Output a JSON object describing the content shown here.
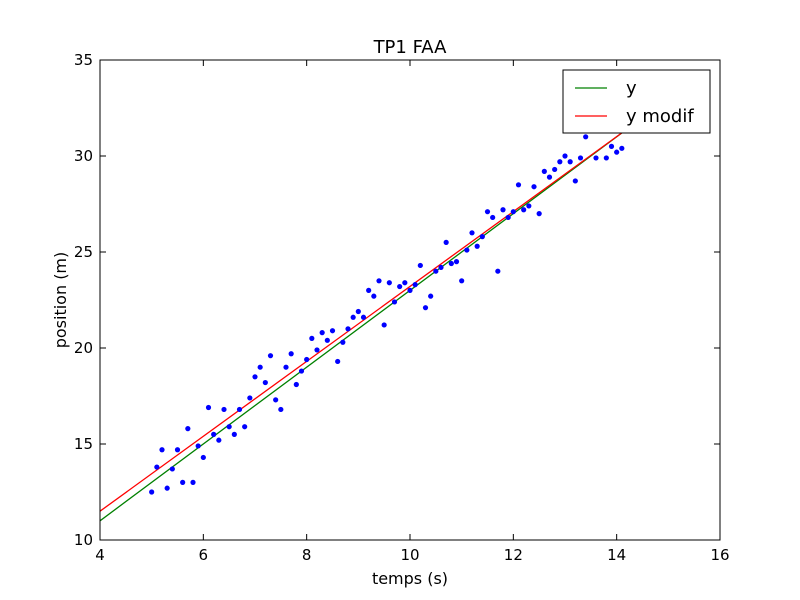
{
  "chart_data": {
    "type": "scatter",
    "title": "TP1 FAA",
    "xlabel": "temps (s)",
    "ylabel": "position (m)",
    "xlim": [
      4,
      16
    ],
    "ylim": [
      10,
      35
    ],
    "xticks": [
      "4",
      "6",
      "8",
      "10",
      "12",
      "14",
      "16"
    ],
    "yticks": [
      "10",
      "15",
      "20",
      "25",
      "30",
      "35"
    ],
    "grid": false,
    "legend_position": "top-right",
    "series": [
      {
        "name": "",
        "kind": "scatter",
        "color": "#0000ff",
        "points": [
          [
            5.0,
            12.5
          ],
          [
            5.1,
            13.8
          ],
          [
            5.2,
            14.7
          ],
          [
            5.3,
            12.7
          ],
          [
            5.4,
            13.7
          ],
          [
            5.5,
            14.7
          ],
          [
            5.6,
            13.0
          ],
          [
            5.7,
            15.8
          ],
          [
            5.8,
            13.0
          ],
          [
            5.9,
            14.9
          ],
          [
            6.0,
            14.3
          ],
          [
            6.1,
            16.9
          ],
          [
            6.2,
            15.5
          ],
          [
            6.3,
            15.2
          ],
          [
            6.4,
            16.8
          ],
          [
            6.5,
            15.9
          ],
          [
            6.6,
            15.5
          ],
          [
            6.7,
            16.8
          ],
          [
            6.8,
            15.9
          ],
          [
            6.9,
            17.4
          ],
          [
            7.0,
            18.5
          ],
          [
            7.1,
            19.0
          ],
          [
            7.2,
            18.2
          ],
          [
            7.3,
            19.6
          ],
          [
            7.4,
            17.3
          ],
          [
            7.5,
            16.8
          ],
          [
            7.6,
            19.0
          ],
          [
            7.7,
            19.7
          ],
          [
            7.8,
            18.1
          ],
          [
            7.9,
            18.8
          ],
          [
            8.0,
            19.4
          ],
          [
            8.1,
            20.5
          ],
          [
            8.2,
            19.9
          ],
          [
            8.3,
            20.8
          ],
          [
            8.4,
            20.4
          ],
          [
            8.5,
            20.9
          ],
          [
            8.6,
            19.3
          ],
          [
            8.7,
            20.3
          ],
          [
            8.8,
            21.0
          ],
          [
            8.9,
            21.6
          ],
          [
            9.0,
            21.9
          ],
          [
            9.1,
            21.6
          ],
          [
            9.2,
            23.0
          ],
          [
            9.3,
            22.7
          ],
          [
            9.4,
            23.5
          ],
          [
            9.5,
            21.2
          ],
          [
            9.6,
            23.4
          ],
          [
            9.7,
            22.4
          ],
          [
            9.8,
            23.2
          ],
          [
            9.9,
            23.4
          ],
          [
            10.0,
            23.0
          ],
          [
            10.1,
            23.3
          ],
          [
            10.2,
            24.3
          ],
          [
            10.3,
            22.1
          ],
          [
            10.4,
            22.7
          ],
          [
            10.5,
            24.0
          ],
          [
            10.6,
            24.2
          ],
          [
            10.7,
            25.5
          ],
          [
            10.8,
            24.4
          ],
          [
            10.9,
            24.5
          ],
          [
            11.0,
            23.5
          ],
          [
            11.1,
            25.1
          ],
          [
            11.2,
            26.0
          ],
          [
            11.3,
            25.3
          ],
          [
            11.4,
            25.8
          ],
          [
            11.5,
            27.1
          ],
          [
            11.6,
            26.8
          ],
          [
            11.7,
            24.0
          ],
          [
            11.8,
            27.2
          ],
          [
            11.9,
            26.8
          ],
          [
            12.0,
            27.1
          ],
          [
            12.1,
            28.5
          ],
          [
            12.2,
            27.2
          ],
          [
            12.3,
            27.4
          ],
          [
            12.4,
            28.4
          ],
          [
            12.5,
            27.0
          ],
          [
            12.6,
            29.2
          ],
          [
            12.7,
            28.9
          ],
          [
            12.8,
            29.3
          ],
          [
            12.9,
            29.7
          ],
          [
            13.0,
            30.0
          ],
          [
            13.1,
            29.7
          ],
          [
            13.2,
            28.7
          ],
          [
            13.3,
            29.9
          ],
          [
            13.4,
            31.0
          ],
          [
            13.6,
            29.9
          ],
          [
            13.8,
            29.9
          ],
          [
            13.9,
            30.5
          ],
          [
            14.0,
            30.2
          ],
          [
            14.1,
            30.4
          ]
        ]
      },
      {
        "name": "y",
        "kind": "line",
        "color": "#008000",
        "x": [
          4,
          14.2
        ],
        "y": [
          11.0,
          31.4
        ]
      },
      {
        "name": "y modif",
        "kind": "line",
        "color": "#ff0000",
        "x": [
          4,
          14.2
        ],
        "y": [
          11.5,
          31.4
        ]
      }
    ]
  }
}
